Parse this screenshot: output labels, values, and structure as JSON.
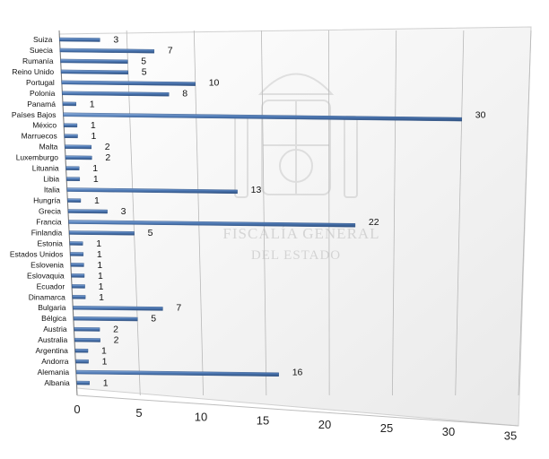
{
  "chart_data": {
    "type": "bar",
    "orientation": "horizontal",
    "style": "3d-perspective",
    "categories": [
      "Suiza",
      "Suecia",
      "Rumanía",
      "Reino Unido",
      "Portugal",
      "Polonia",
      "Panamá",
      "Países Bajos",
      "México",
      "Marruecos",
      "Malta",
      "Luxemburgo",
      "Lituania",
      "Libia",
      "Italia",
      "Hungría",
      "Grecia",
      "Francia",
      "Finlandia",
      "Estonia",
      "Estados Unidos",
      "Eslovenia",
      "Eslovaquia",
      "Ecuador",
      "Dinamarca",
      "Bulgaria",
      "Bélgica",
      "Austria",
      "Australia",
      "Argentina",
      "Andorra",
      "Alemania",
      "Albania"
    ],
    "values": [
      3,
      7,
      5,
      5,
      10,
      8,
      1,
      30,
      1,
      1,
      2,
      2,
      1,
      1,
      13,
      1,
      3,
      22,
      5,
      1,
      1,
      1,
      1,
      1,
      1,
      7,
      5,
      2,
      2,
      1,
      1,
      16,
      1
    ],
    "xlim": [
      0,
      35
    ],
    "xticks": [
      0,
      5,
      10,
      15,
      20,
      25,
      30,
      35
    ],
    "grid": true,
    "bar_color": "#4f7ab5",
    "title": "",
    "xlabel": "",
    "ylabel": ""
  },
  "watermark": {
    "line1": "FISCALÍA GENERAL",
    "line2": "DEL ESTADO"
  }
}
